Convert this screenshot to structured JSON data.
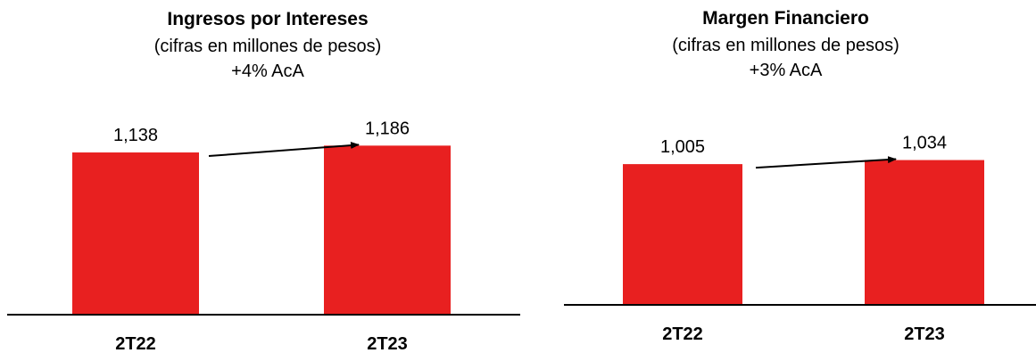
{
  "chart_data": [
    {
      "type": "bar",
      "title": "Ingresos por Intereses",
      "subtitle": "(cifras en millones de pesos)",
      "change": "+4% AcA",
      "categories": [
        "2T22",
        "2T23"
      ],
      "values": [
        1138,
        1186
      ],
      "data_labels": [
        "1,138",
        "1,186"
      ],
      "color": "#E82020",
      "grid": false,
      "legend": "none"
    },
    {
      "type": "bar",
      "title": "Margen Financiero",
      "subtitle": "(cifras en millones de pesos)",
      "change": "+3% AcA",
      "categories": [
        "2T22",
        "2T23"
      ],
      "values": [
        1005,
        1034
      ],
      "data_labels": [
        "1,005",
        "1,034"
      ],
      "color": "#E82020",
      "grid": false,
      "legend": "none"
    }
  ]
}
